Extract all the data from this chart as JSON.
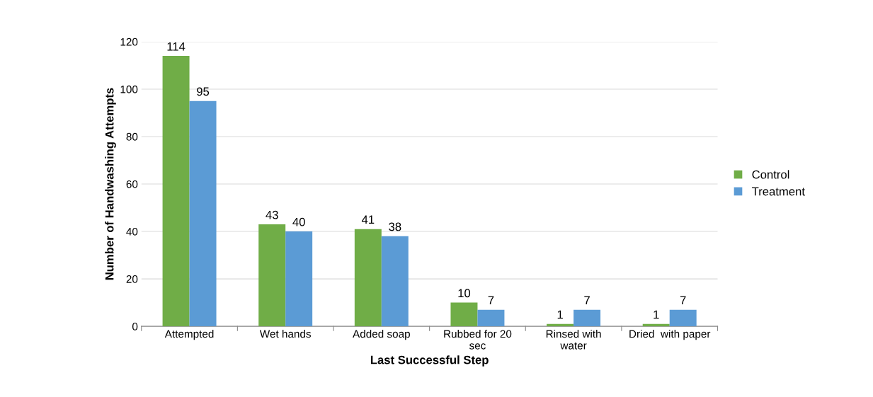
{
  "chart_data": {
    "type": "bar",
    "xlabel": "Last Successful Step",
    "ylabel": "Number of Handwashing Attempts",
    "categories": [
      "Attempted",
      "Wet hands",
      "Added soap",
      "Rubbed for 20\nsec",
      "Rinsed with\nwater",
      "Dried  with paper"
    ],
    "series": [
      {
        "name": "Control",
        "color": "#70ad47",
        "values": [
          114,
          43,
          41,
          10,
          1,
          1
        ]
      },
      {
        "name": "Treatment",
        "color": "#5b9bd5",
        "values": [
          95,
          40,
          38,
          7,
          7,
          7
        ]
      }
    ],
    "ylim": [
      0,
      120
    ],
    "yticks": [
      0,
      20,
      40,
      60,
      80,
      100,
      120
    ],
    "grid": "y",
    "legend": "right",
    "data_labels": true
  }
}
